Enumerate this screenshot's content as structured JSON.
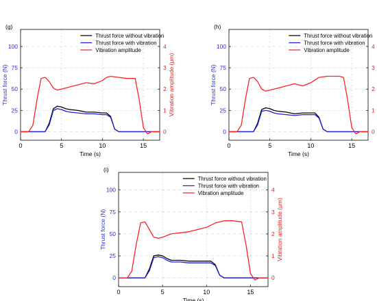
{
  "colors": {
    "without": "#000000",
    "with": "#1f1fd6",
    "amp": "#ff2020",
    "left_axis": "#2b2bd0",
    "right_axis": "#e02020",
    "grid": "#c8c8c8"
  },
  "chart_data": [
    {
      "type": "line",
      "panel_label": "(g)",
      "xlabel": "Time (s)",
      "ylabel_left": "Thrust force (N)",
      "ylabel_right": "Vibration amplitude (μm)",
      "xlim": [
        0,
        17
      ],
      "xticks": [
        0,
        5,
        10,
        15
      ],
      "ylim_left": [
        -10,
        120
      ],
      "yticks_left": [
        0,
        25,
        50,
        75,
        100
      ],
      "ylim_right": [
        -0.4,
        4.8
      ],
      "yticks_right": [
        0,
        1,
        2,
        3,
        4
      ],
      "grid": true,
      "legend_position": "top-right",
      "series": [
        {
          "name": "Thrust force without vibration",
          "axis": "left",
          "color_key": "without",
          "x": [
            0,
            1.5,
            3,
            3.5,
            4,
            4.5,
            5,
            5.5,
            6,
            7,
            8,
            9,
            10,
            10.5,
            11,
            11.5,
            12,
            15,
            16,
            17
          ],
          "y": [
            0,
            0,
            0,
            10,
            27,
            30,
            29,
            27,
            26,
            25,
            23,
            23,
            22,
            22,
            18,
            3,
            0,
            0,
            0,
            0
          ]
        },
        {
          "name": "Thrust force with vibration",
          "axis": "left",
          "color_key": "with",
          "x": [
            0,
            1.5,
            3,
            3.5,
            4,
            4.5,
            5,
            5.5,
            6,
            7,
            8,
            9,
            10,
            10.5,
            11,
            11.5,
            12,
            15,
            16,
            17
          ],
          "y": [
            0,
            0,
            0,
            8,
            25,
            27,
            26,
            24,
            23,
            22,
            21,
            21,
            20,
            20,
            17,
            3,
            0,
            0,
            0,
            0
          ]
        },
        {
          "name": "Vibration amplitude",
          "axis": "right",
          "color_key": "amp",
          "x": [
            0,
            1,
            1.5,
            2,
            2.5,
            3,
            3.5,
            4,
            4.5,
            5,
            6,
            7,
            8,
            9,
            10,
            10.5,
            11,
            12,
            13,
            14,
            14.5,
            15,
            15.5,
            16,
            17
          ],
          "y": [
            0,
            0,
            0.3,
            1.5,
            2.5,
            2.55,
            2.35,
            2.05,
            1.95,
            2.0,
            2.1,
            2.2,
            2.3,
            2.25,
            2.4,
            2.55,
            2.6,
            2.55,
            2.5,
            2.5,
            1.5,
            0.2,
            -0.1,
            0,
            0
          ]
        }
      ]
    },
    {
      "type": "line",
      "panel_label": "(h)",
      "xlabel": "Time (s)",
      "ylabel_left": "Thrust force (N)",
      "ylabel_right": "Vibration amplitude (μm)",
      "xlim": [
        0,
        17
      ],
      "xticks": [
        0,
        5,
        10,
        15
      ],
      "ylim_left": [
        -10,
        120
      ],
      "yticks_left": [
        0,
        25,
        50,
        75,
        100
      ],
      "ylim_right": [
        -0.4,
        4.8
      ],
      "yticks_right": [
        0,
        1,
        2,
        3,
        4
      ],
      "grid": true,
      "legend_position": "top-right",
      "series": [
        {
          "name": "Thrust force without vibration",
          "axis": "left",
          "color_key": "without",
          "x": [
            0,
            1.5,
            3,
            3.5,
            4,
            4.5,
            5,
            5.5,
            6,
            7,
            8,
            9,
            10,
            10.5,
            11,
            11.5,
            12,
            15,
            16,
            17
          ],
          "y": [
            0,
            0,
            0,
            10,
            26,
            28,
            27,
            25,
            24,
            23,
            21,
            22,
            22,
            22,
            17,
            3,
            0,
            0,
            0,
            0
          ]
        },
        {
          "name": "Thrust force with vibration",
          "axis": "left",
          "color_key": "with",
          "x": [
            0,
            1.5,
            3,
            3.5,
            4,
            4.5,
            5,
            5.5,
            6,
            7,
            8,
            9,
            10,
            10.5,
            11,
            11.5,
            12,
            15,
            16,
            17
          ],
          "y": [
            0,
            0,
            0,
            8,
            24,
            25,
            24,
            22,
            21,
            20,
            19,
            20,
            20,
            20,
            16,
            3,
            0,
            0,
            0,
            0
          ]
        },
        {
          "name": "Vibration amplitude",
          "axis": "right",
          "color_key": "amp",
          "x": [
            0,
            1,
            1.5,
            2,
            2.5,
            3,
            3.5,
            4,
            4.5,
            5,
            6,
            7,
            8,
            9,
            10,
            11,
            12,
            13,
            13.5,
            14,
            14.5,
            15,
            15.5,
            16,
            17
          ],
          "y": [
            0,
            0,
            0.3,
            1.5,
            2.5,
            2.55,
            2.35,
            2.0,
            1.9,
            1.95,
            2.05,
            2.15,
            2.25,
            2.15,
            2.3,
            2.55,
            2.6,
            2.6,
            2.6,
            2.55,
            1.5,
            0.2,
            -0.1,
            0,
            0
          ]
        }
      ]
    },
    {
      "type": "line",
      "panel_label": "(i)",
      "xlabel": "Time (s)",
      "ylabel_left": "Thrust force (N)",
      "ylabel_right": "Vibration amplitude (μm)",
      "xlim": [
        0,
        17
      ],
      "xticks": [
        0,
        5,
        10,
        15
      ],
      "ylim_left": [
        -10,
        120
      ],
      "yticks_left": [
        0,
        25,
        50,
        75,
        100
      ],
      "ylim_right": [
        -0.4,
        4.8
      ],
      "yticks_right": [
        0,
        1,
        2,
        3,
        4
      ],
      "grid": true,
      "legend_position": "top-right",
      "series": [
        {
          "name": "Thrust force without vibration",
          "axis": "left",
          "color_key": "without",
          "x": [
            0,
            1.5,
            3,
            3.5,
            4,
            4.5,
            5,
            5.5,
            6,
            7,
            8,
            9,
            10,
            10.5,
            11,
            11.5,
            12,
            15,
            16,
            17
          ],
          "y": [
            0,
            0,
            0,
            10,
            25,
            26,
            25,
            22,
            20,
            20,
            19,
            19,
            19,
            19,
            15,
            3,
            0,
            0,
            0,
            0
          ]
        },
        {
          "name": "Thrust force with vibration",
          "axis": "left",
          "color_key": "with",
          "x": [
            0,
            1.5,
            3,
            3.5,
            4,
            4.5,
            5,
            5.5,
            6,
            7,
            8,
            9,
            10,
            10.5,
            11,
            11.5,
            12,
            15,
            16,
            17
          ],
          "y": [
            0,
            0,
            0,
            8,
            23,
            24,
            23,
            20,
            18,
            18,
            17,
            17,
            17,
            17,
            14,
            3,
            0,
            0,
            0,
            0
          ]
        },
        {
          "name": "Vibration amplitude",
          "axis": "right",
          "color_key": "amp",
          "x": [
            0,
            1,
            1.5,
            2,
            2.5,
            3,
            3.5,
            4,
            4.5,
            5,
            6,
            7,
            8,
            9,
            10,
            11,
            12,
            13,
            14,
            14.5,
            15,
            15.5,
            16,
            17
          ],
          "y": [
            0,
            0,
            0.3,
            1.5,
            2.5,
            2.55,
            2.2,
            1.85,
            1.8,
            1.85,
            2.0,
            2.05,
            2.1,
            2.2,
            2.3,
            2.5,
            2.6,
            2.6,
            2.55,
            1.5,
            0.2,
            -0.1,
            0,
            0
          ]
        }
      ]
    }
  ]
}
